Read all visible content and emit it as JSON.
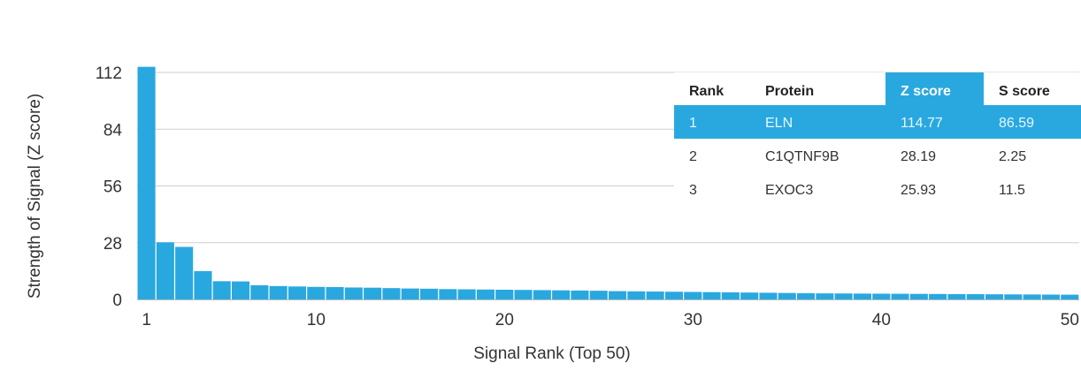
{
  "chart_data": {
    "type": "bar",
    "title": "",
    "xlabel": "Signal Rank (Top 50)",
    "ylabel": "Strength of Signal (Z score)",
    "ylim": [
      0,
      112
    ],
    "yticks": [
      0,
      28,
      56,
      84,
      112
    ],
    "xticks": [
      1,
      10,
      20,
      30,
      40,
      50
    ],
    "grid": true,
    "bar_color": "#29a8e0",
    "x": [
      1,
      2,
      3,
      4,
      5,
      6,
      7,
      8,
      9,
      10,
      11,
      12,
      13,
      14,
      15,
      16,
      17,
      18,
      19,
      20,
      21,
      22,
      23,
      24,
      25,
      26,
      27,
      28,
      29,
      30,
      31,
      32,
      33,
      34,
      35,
      36,
      37,
      38,
      39,
      40,
      41,
      42,
      43,
      44,
      45,
      46,
      47,
      48,
      49,
      50
    ],
    "values": [
      114.77,
      28.19,
      25.93,
      14,
      9,
      8.9,
      7,
      6.6,
      6.4,
      6.2,
      6.1,
      5.9,
      5.8,
      5.6,
      5.4,
      5.3,
      5.1,
      5,
      4.9,
      4.8,
      4.7,
      4.6,
      4.5,
      4.4,
      4.3,
      4.1,
      4,
      3.9,
      3.8,
      3.7,
      3.6,
      3.5,
      3.4,
      3.3,
      3.2,
      3.1,
      3,
      2.95,
      2.9,
      2.85,
      2.8,
      2.75,
      2.7,
      2.65,
      2.6,
      2.55,
      2.5,
      2.45,
      2.4,
      2.35
    ]
  },
  "table": {
    "headers": [
      "Rank",
      "Protein",
      "Z score",
      "S score"
    ],
    "highlight_column": 2,
    "highlight_row": 0,
    "highlight_color": "#29a8e0",
    "rows": [
      [
        "1",
        "ELN",
        "114.77",
        "86.59"
      ],
      [
        "2",
        "C1QTNF9B",
        "28.19",
        "2.25"
      ],
      [
        "3",
        "EXOC3",
        "25.93",
        "11.5"
      ]
    ]
  }
}
